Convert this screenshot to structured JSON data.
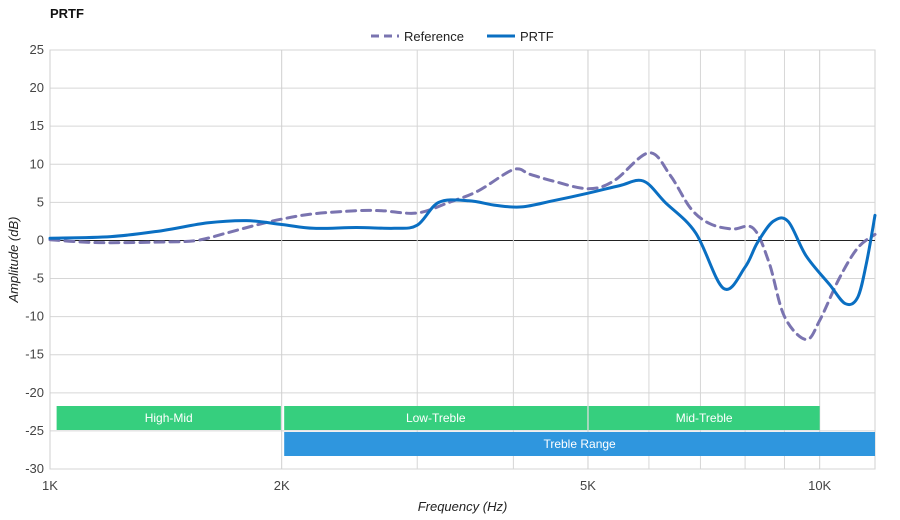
{
  "chart_data": {
    "type": "line",
    "title": "PRTF",
    "xlabel": "Frequency (Hz)",
    "ylabel": "Amplitude (dB)",
    "x_scale": "log",
    "xlim": [
      1000,
      11800
    ],
    "ylim": [
      -30,
      25
    ],
    "grid": true,
    "legend_position": "top-center",
    "x_ticks": [
      {
        "value": 1000,
        "label": "1K"
      },
      {
        "value": 2000,
        "label": "2K"
      },
      {
        "value": 5000,
        "label": "5K"
      },
      {
        "value": 10000,
        "label": "10K"
      }
    ],
    "x_minor_ticks": [
      3000,
      4000,
      6000,
      7000,
      8000,
      9000
    ],
    "y_ticks": [
      25,
      20,
      15,
      10,
      5,
      0,
      -5,
      -10,
      -15,
      -20,
      -25,
      -30
    ],
    "series": [
      {
        "name": "Reference",
        "color": "#7a74b0",
        "style": "dashed",
        "points": [
          [
            1000,
            0.1
          ],
          [
            1100,
            -0.2
          ],
          [
            1200,
            -0.3
          ],
          [
            1400,
            -0.2
          ],
          [
            1550,
            0.0
          ],
          [
            1700,
            1.0
          ],
          [
            1850,
            2.0
          ],
          [
            2000,
            2.8
          ],
          [
            2200,
            3.5
          ],
          [
            2500,
            3.9
          ],
          [
            2700,
            3.9
          ],
          [
            3000,
            3.6
          ],
          [
            3300,
            5.0
          ],
          [
            3600,
            6.5
          ],
          [
            4000,
            9.3
          ],
          [
            4200,
            8.7
          ],
          [
            4500,
            7.8
          ],
          [
            5000,
            6.8
          ],
          [
            5400,
            7.8
          ],
          [
            6000,
            11.5
          ],
          [
            6400,
            8.5
          ],
          [
            6800,
            4.2
          ],
          [
            7200,
            2.2
          ],
          [
            7700,
            1.5
          ],
          [
            8200,
            1.6
          ],
          [
            8600,
            -3.0
          ],
          [
            9000,
            -10.0
          ],
          [
            9600,
            -13.0
          ],
          [
            10000,
            -10.5
          ],
          [
            10600,
            -5.0
          ],
          [
            11200,
            -1.0
          ],
          [
            11800,
            0.8
          ]
        ]
      },
      {
        "name": "PRTF",
        "color": "#0a6fc2",
        "style": "solid",
        "points": [
          [
            1000,
            0.3
          ],
          [
            1200,
            0.5
          ],
          [
            1400,
            1.3
          ],
          [
            1600,
            2.3
          ],
          [
            1800,
            2.6
          ],
          [
            2000,
            2.1
          ],
          [
            2200,
            1.6
          ],
          [
            2500,
            1.7
          ],
          [
            2800,
            1.6
          ],
          [
            3000,
            2.0
          ],
          [
            3200,
            5.0
          ],
          [
            3500,
            5.2
          ],
          [
            3800,
            4.6
          ],
          [
            4100,
            4.4
          ],
          [
            4500,
            5.2
          ],
          [
            5000,
            6.2
          ],
          [
            5500,
            7.2
          ],
          [
            5900,
            7.8
          ],
          [
            6300,
            5.0
          ],
          [
            6900,
            1.0
          ],
          [
            7500,
            -6.3
          ],
          [
            8000,
            -3.5
          ],
          [
            8300,
            -0.3
          ],
          [
            8700,
            2.5
          ],
          [
            9100,
            2.5
          ],
          [
            9600,
            -2.0
          ],
          [
            10300,
            -5.8
          ],
          [
            10800,
            -8.3
          ],
          [
            11200,
            -7.5
          ],
          [
            11500,
            -3.0
          ],
          [
            11800,
            3.3
          ]
        ]
      }
    ],
    "bands": [
      {
        "label": "High-Mid",
        "from": 1020,
        "to": 1995,
        "row": 0,
        "color": "#36cf7e"
      },
      {
        "label": "Low-Treble",
        "from": 2015,
        "to": 4990,
        "row": 0,
        "color": "#36cf7e"
      },
      {
        "label": "Mid-Treble",
        "from": 5010,
        "to": 10000,
        "row": 0,
        "color": "#36cf7e"
      },
      {
        "label": "Treble Range",
        "from": 2015,
        "to": 11800,
        "row": 1,
        "color": "#2f96de"
      }
    ]
  }
}
